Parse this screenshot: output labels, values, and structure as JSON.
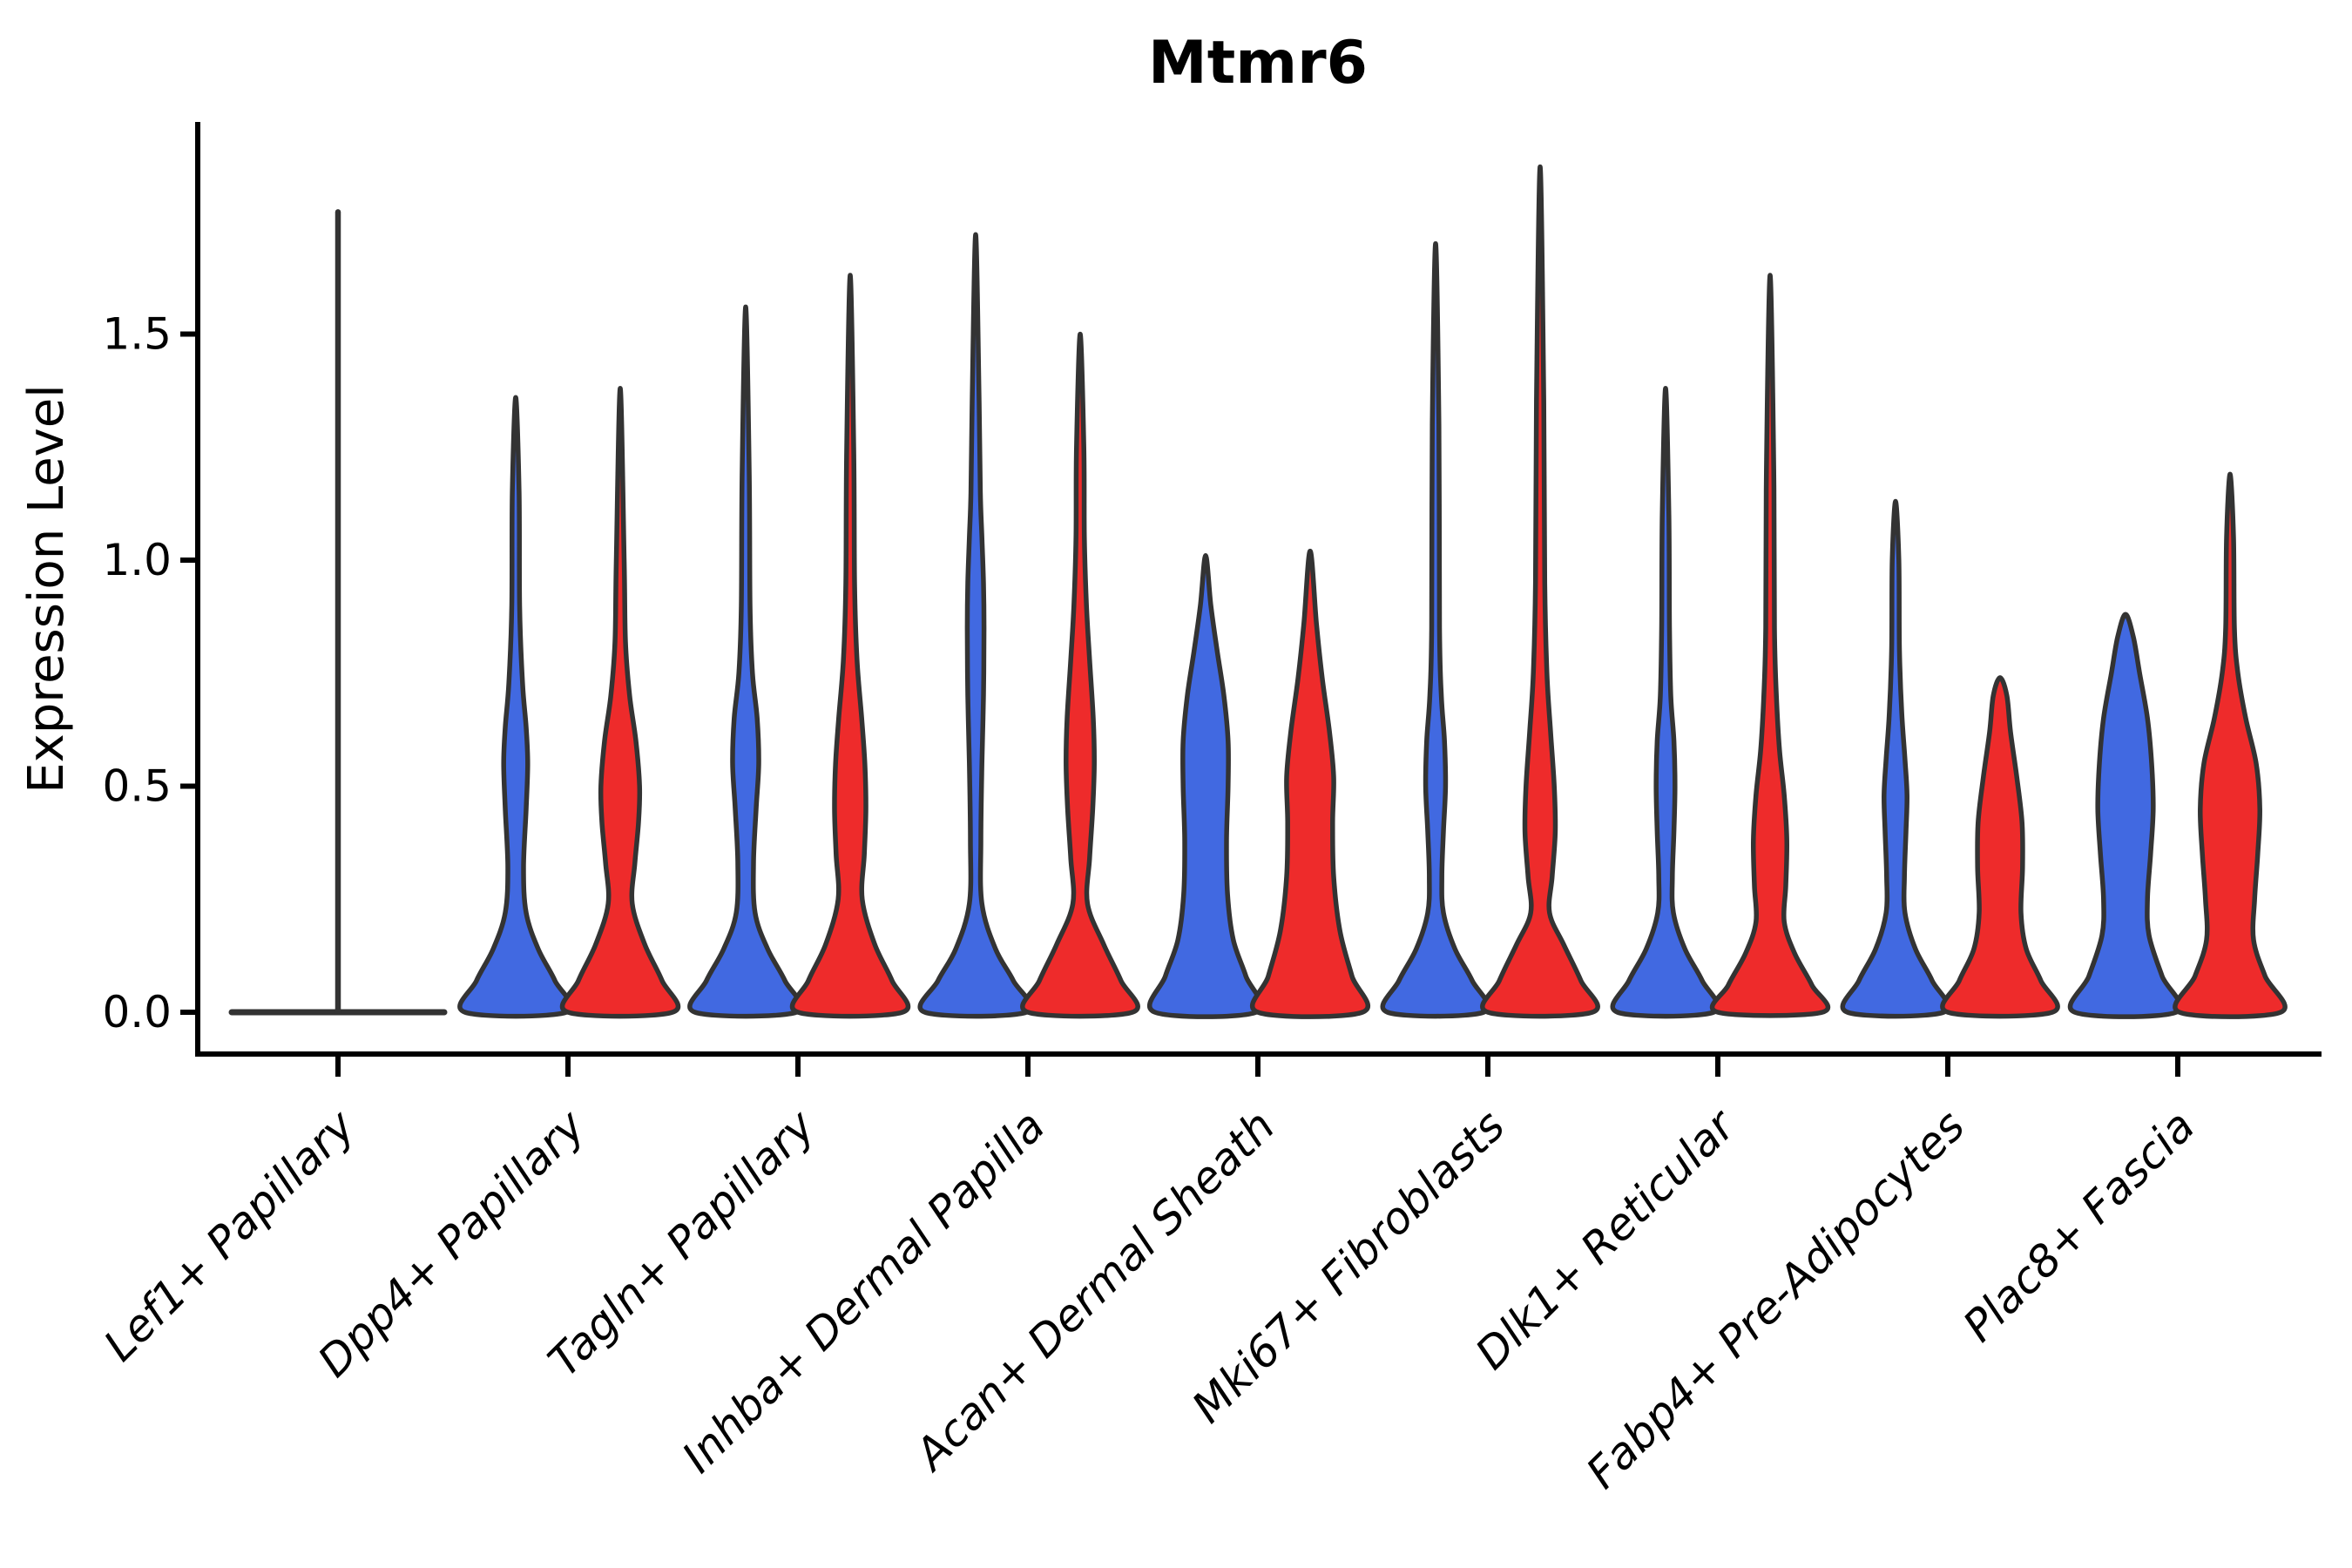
{
  "title": "Mtmr6",
  "chart_data": {
    "type": "violin",
    "title": "Mtmr6",
    "xlabel": "",
    "ylabel": "Expression Level",
    "grid": false,
    "legend": "none",
    "ylim": [
      -0.06,
      1.97
    ],
    "yticks": [
      0.0,
      0.5,
      1.0,
      1.5
    ],
    "ytick_labels": [
      "0.0",
      "0.5",
      "1.0",
      "1.5"
    ],
    "colors": {
      "blue_fill": "#4169E1",
      "red_fill": "#EE2B2B",
      "outline": "#333333",
      "axis": "#000000"
    },
    "categories": [
      "Lef1+ Papillary",
      "Dpp4+ Papillary",
      "Tagln+ Papillary",
      "Inhba+ Dermal Papilla",
      "Acan+ Dermal Sheath",
      "Mki67+ Fibroblasts",
      "Dlk1+ Reticular",
      "Fabp4+ Pre-Adipocytes",
      "Plac8+ Fascia"
    ],
    "groups": [
      {
        "category": "Lef1+ Papillary",
        "collapsed": true,
        "spike_top": 1.77,
        "violins": []
      },
      {
        "category": "Dpp4+ Papillary",
        "collapsed": false,
        "violins": [
          {
            "side": "blue",
            "max": 1.36,
            "profile": [
              [
                0,
                0.97
              ],
              [
                0.07,
                0.75
              ],
              [
                0.14,
                0.43
              ],
              [
                0.22,
                0.2
              ],
              [
                0.32,
                0.15
              ],
              [
                0.45,
                0.2
              ],
              [
                0.55,
                0.23
              ],
              [
                0.63,
                0.2
              ],
              [
                0.73,
                0.13
              ],
              [
                0.9,
                0.075
              ],
              [
                1.15,
                0.065
              ],
              [
                1.36,
                0
              ]
            ]
          },
          {
            "side": "red",
            "max": 1.38,
            "profile": [
              [
                0,
                1.0
              ],
              [
                0.07,
                0.8
              ],
              [
                0.15,
                0.47
              ],
              [
                0.24,
                0.23
              ],
              [
                0.33,
                0.28
              ],
              [
                0.42,
                0.35
              ],
              [
                0.5,
                0.37
              ],
              [
                0.6,
                0.3
              ],
              [
                0.7,
                0.18
              ],
              [
                0.82,
                0.1
              ],
              [
                1.0,
                0.075
              ],
              [
                1.38,
                0
              ]
            ]
          }
        ]
      },
      {
        "category": "Tagln+ Papillary",
        "collapsed": false,
        "violins": [
          {
            "side": "blue",
            "max": 1.56,
            "profile": [
              [
                0,
                0.97
              ],
              [
                0.07,
                0.75
              ],
              [
                0.14,
                0.42
              ],
              [
                0.22,
                0.18
              ],
              [
                0.33,
                0.15
              ],
              [
                0.45,
                0.2
              ],
              [
                0.55,
                0.25
              ],
              [
                0.65,
                0.22
              ],
              [
                0.75,
                0.13
              ],
              [
                0.9,
                0.083
              ],
              [
                1.2,
                0.067
              ],
              [
                1.56,
                0
              ]
            ]
          },
          {
            "side": "red",
            "max": 1.63,
            "profile": [
              [
                0,
                1.0
              ],
              [
                0.07,
                0.8
              ],
              [
                0.15,
                0.47
              ],
              [
                0.25,
                0.23
              ],
              [
                0.35,
                0.27
              ],
              [
                0.45,
                0.3
              ],
              [
                0.55,
                0.28
              ],
              [
                0.65,
                0.22
              ],
              [
                0.78,
                0.13
              ],
              [
                0.95,
                0.083
              ],
              [
                1.25,
                0.067
              ],
              [
                1.63,
                0
              ]
            ]
          }
        ]
      },
      {
        "category": "Inhba+ Dermal Papilla",
        "collapsed": false,
        "violins": [
          {
            "side": "blue",
            "max": 1.72,
            "profile": [
              [
                0,
                0.97
              ],
              [
                0.07,
                0.72
              ],
              [
                0.14,
                0.38
              ],
              [
                0.24,
                0.12
              ],
              [
                0.38,
                0.1
              ],
              [
                0.55,
                0.12
              ],
              [
                0.7,
                0.15
              ],
              [
                0.85,
                0.16
              ],
              [
                0.95,
                0.15
              ],
              [
                1.05,
                0.12
              ],
              [
                1.15,
                0.09
              ],
              [
                1.35,
                0.067
              ],
              [
                1.72,
                0
              ]
            ]
          },
          {
            "side": "red",
            "max": 1.5,
            "profile": [
              [
                0,
                1.0
              ],
              [
                0.07,
                0.78
              ],
              [
                0.15,
                0.45
              ],
              [
                0.24,
                0.14
              ],
              [
                0.34,
                0.18
              ],
              [
                0.45,
                0.24
              ],
              [
                0.55,
                0.27
              ],
              [
                0.65,
                0.25
              ],
              [
                0.78,
                0.18
              ],
              [
                0.9,
                0.12
              ],
              [
                1.05,
                0.08
              ],
              [
                1.25,
                0.07
              ],
              [
                1.5,
                0
              ]
            ]
          }
        ]
      },
      {
        "category": "Acan+ Dermal Sheath",
        "collapsed": false,
        "violins": [
          {
            "side": "blue",
            "max": 1.01,
            "profile": [
              [
                0,
                0.97
              ],
              [
                0.08,
                0.77
              ],
              [
                0.16,
                0.53
              ],
              [
                0.26,
                0.42
              ],
              [
                0.38,
                0.4
              ],
              [
                0.5,
                0.43
              ],
              [
                0.6,
                0.43
              ],
              [
                0.7,
                0.35
              ],
              [
                0.8,
                0.22
              ],
              [
                0.9,
                0.1
              ],
              [
                1.01,
                0
              ]
            ]
          },
          {
            "side": "red",
            "max": 1.02,
            "profile": [
              [
                0,
                1.0
              ],
              [
                0.08,
                0.8
              ],
              [
                0.18,
                0.57
              ],
              [
                0.3,
                0.45
              ],
              [
                0.42,
                0.43
              ],
              [
                0.52,
                0.45
              ],
              [
                0.62,
                0.37
              ],
              [
                0.74,
                0.23
              ],
              [
                0.86,
                0.12
              ],
              [
                1.02,
                0
              ]
            ]
          }
        ]
      },
      {
        "category": "Mki67+ Fibroblasts",
        "collapsed": false,
        "violins": [
          {
            "side": "blue",
            "max": 1.7,
            "profile": [
              [
                0,
                0.92
              ],
              [
                0.07,
                0.7
              ],
              [
                0.14,
                0.37
              ],
              [
                0.22,
                0.15
              ],
              [
                0.3,
                0.12
              ],
              [
                0.4,
                0.15
              ],
              [
                0.5,
                0.19
              ],
              [
                0.6,
                0.17
              ],
              [
                0.7,
                0.11
              ],
              [
                0.85,
                0.075
              ],
              [
                1.3,
                0.063
              ],
              [
                1.7,
                0
              ]
            ]
          },
          {
            "side": "red",
            "max": 1.87,
            "profile": [
              [
                0,
                1.0
              ],
              [
                0.07,
                0.78
              ],
              [
                0.15,
                0.45
              ],
              [
                0.22,
                0.18
              ],
              [
                0.3,
                0.23
              ],
              [
                0.4,
                0.29
              ],
              [
                0.5,
                0.27
              ],
              [
                0.62,
                0.2
              ],
              [
                0.75,
                0.13
              ],
              [
                0.95,
                0.088
              ],
              [
                1.35,
                0.07
              ],
              [
                1.87,
                0
              ]
            ]
          }
        ]
      },
      {
        "category": "Dlk1+ Reticular",
        "collapsed": false,
        "violins": [
          {
            "side": "blue",
            "max": 1.38,
            "profile": [
              [
                0,
                0.92
              ],
              [
                0.07,
                0.7
              ],
              [
                0.14,
                0.37
              ],
              [
                0.22,
                0.15
              ],
              [
                0.3,
                0.13
              ],
              [
                0.4,
                0.16
              ],
              [
                0.5,
                0.18
              ],
              [
                0.6,
                0.16
              ],
              [
                0.7,
                0.1
              ],
              [
                0.85,
                0.075
              ],
              [
                1.1,
                0.063
              ],
              [
                1.38,
                0
              ]
            ]
          },
          {
            "side": "red",
            "max": 1.63,
            "profile": [
              [
                0,
                1.0
              ],
              [
                0.06,
                0.8
              ],
              [
                0.13,
                0.47
              ],
              [
                0.2,
                0.27
              ],
              [
                0.28,
                0.3
              ],
              [
                0.38,
                0.32
              ],
              [
                0.48,
                0.27
              ],
              [
                0.58,
                0.18
              ],
              [
                0.7,
                0.12
              ],
              [
                0.85,
                0.083
              ],
              [
                1.2,
                0.07
              ],
              [
                1.63,
                0
              ]
            ]
          }
        ]
      },
      {
        "category": "Fabp4+ Pre-Adipocytes",
        "collapsed": false,
        "violins": [
          {
            "side": "blue",
            "max": 1.13,
            "profile": [
              [
                0,
                0.92
              ],
              [
                0.07,
                0.7
              ],
              [
                0.14,
                0.38
              ],
              [
                0.22,
                0.18
              ],
              [
                0.3,
                0.17
              ],
              [
                0.4,
                0.2
              ],
              [
                0.48,
                0.22
              ],
              [
                0.56,
                0.18
              ],
              [
                0.66,
                0.12
              ],
              [
                0.8,
                0.075
              ],
              [
                1.0,
                0.063
              ],
              [
                1.13,
                0
              ]
            ]
          },
          {
            "side": "red",
            "max": 0.74,
            "profile": [
              [
                0,
                1.0
              ],
              [
                0.07,
                0.78
              ],
              [
                0.14,
                0.5
              ],
              [
                0.22,
                0.4
              ],
              [
                0.32,
                0.43
              ],
              [
                0.42,
                0.42
              ],
              [
                0.52,
                0.32
              ],
              [
                0.62,
                0.2
              ],
              [
                0.7,
                0.13
              ],
              [
                0.74,
                0
              ]
            ]
          }
        ]
      },
      {
        "category": "Plac8+ Fascia",
        "collapsed": false,
        "violins": [
          {
            "side": "blue",
            "max": 0.88,
            "profile": [
              [
                0,
                0.97
              ],
              [
                0.08,
                0.7
              ],
              [
                0.17,
                0.45
              ],
              [
                0.25,
                0.42
              ],
              [
                0.35,
                0.48
              ],
              [
                0.45,
                0.53
              ],
              [
                0.55,
                0.5
              ],
              [
                0.65,
                0.42
              ],
              [
                0.75,
                0.27
              ],
              [
                0.83,
                0.15
              ],
              [
                0.88,
                0
              ]
            ]
          },
          {
            "side": "red",
            "max": 1.19,
            "profile": [
              [
                0,
                0.97
              ],
              [
                0.08,
                0.67
              ],
              [
                0.16,
                0.45
              ],
              [
                0.25,
                0.47
              ],
              [
                0.35,
                0.53
              ],
              [
                0.45,
                0.57
              ],
              [
                0.55,
                0.5
              ],
              [
                0.65,
                0.3
              ],
              [
                0.75,
                0.15
              ],
              [
                0.85,
                0.083
              ],
              [
                1.05,
                0.067
              ],
              [
                1.19,
                0
              ]
            ]
          }
        ]
      }
    ]
  }
}
